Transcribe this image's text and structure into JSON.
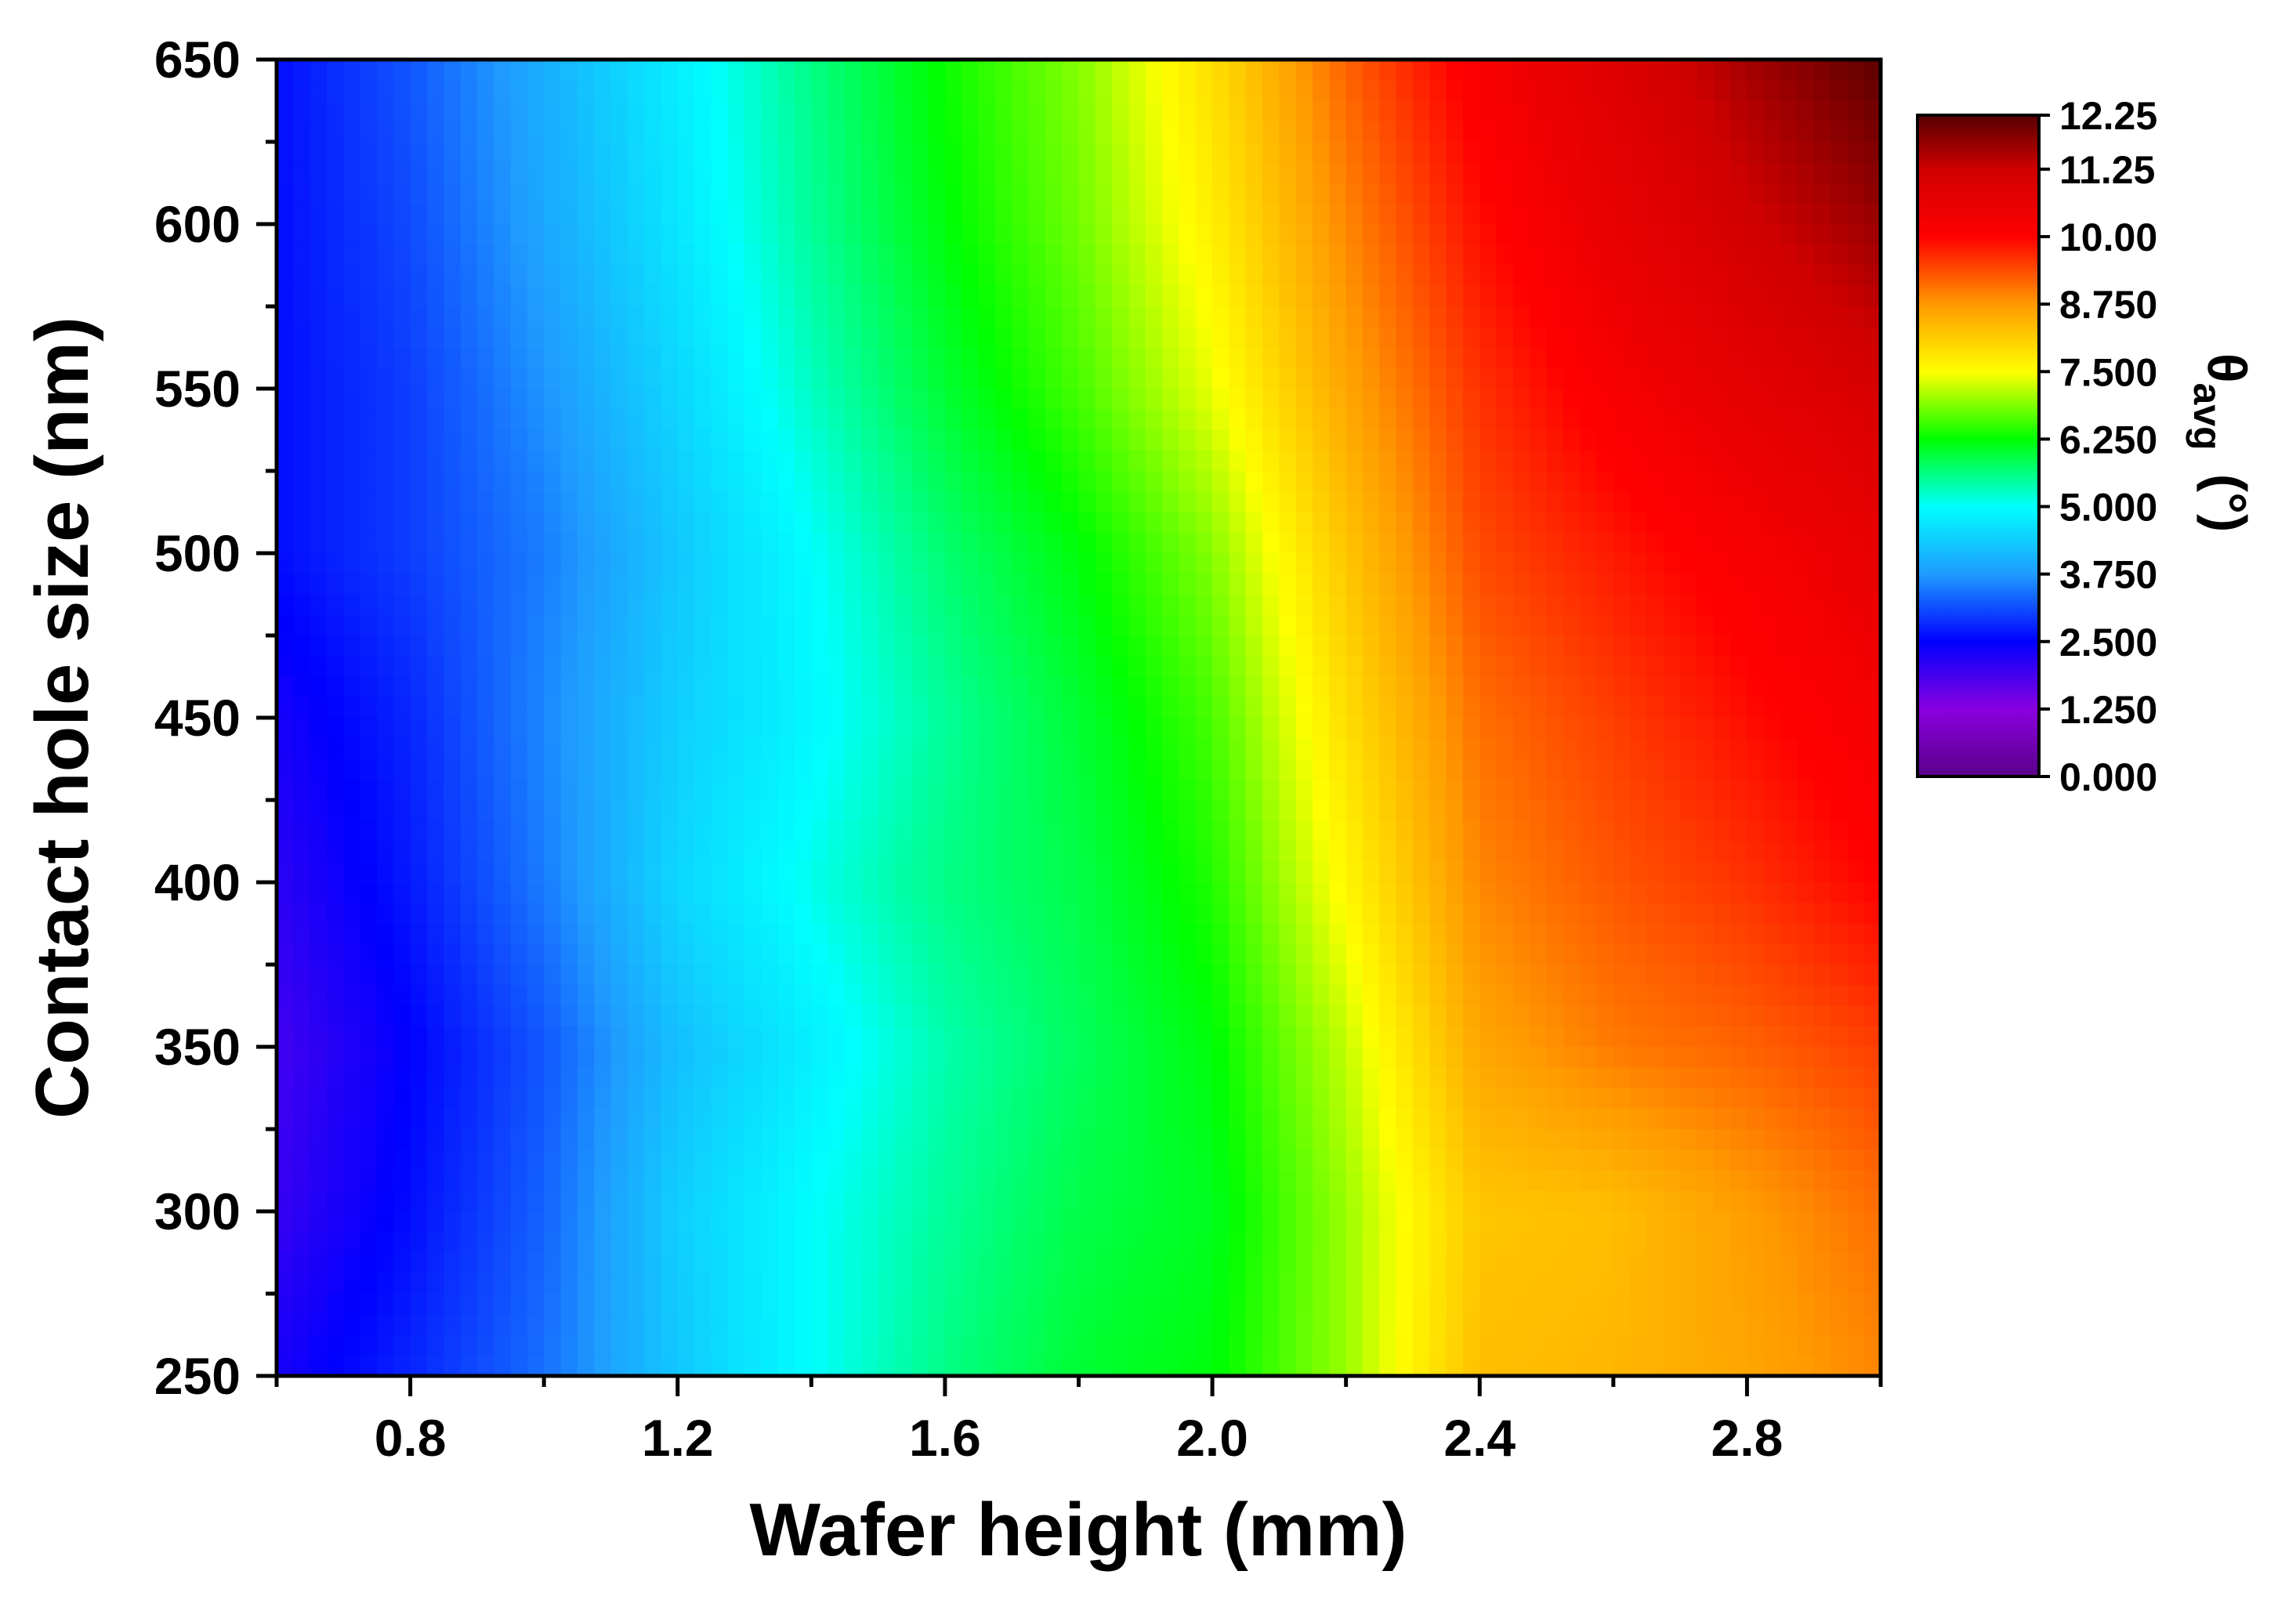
{
  "chart_data": {
    "type": "heatmap",
    "title": "",
    "xlabel": "Wafer height (mm)",
    "ylabel": "Contact hole size (nm)",
    "xlim": [
      0.6,
      3.0
    ],
    "ylim": [
      250,
      650
    ],
    "x_ticks": [
      0.8,
      1.2,
      1.6,
      2.0,
      2.4,
      2.8
    ],
    "x_tick_labels": [
      "0.8",
      "1.2",
      "1.6",
      "2.0",
      "2.4",
      "2.8"
    ],
    "y_ticks": [
      250,
      300,
      350,
      400,
      450,
      500,
      550,
      600,
      650
    ],
    "y_tick_labels": [
      "250",
      "300",
      "350",
      "400",
      "450",
      "500",
      "550",
      "600",
      "650"
    ],
    "colorbar": {
      "label_main": "θ",
      "label_sub": "avg",
      "label_unit": "(°)",
      "range": [
        0,
        12.25
      ],
      "ticks": [
        0,
        1.25,
        2.5,
        3.75,
        5,
        6.25,
        7.5,
        8.75,
        10,
        11.25,
        12.25
      ],
      "tick_labels": [
        "0.000",
        "1.250",
        "2.500",
        "3.750",
        "5.000",
        "6.250",
        "7.500",
        "8.750",
        "10.00",
        "11.25",
        "12.25"
      ],
      "colors": [
        "#5a0088",
        "#8a00e0",
        "#0000ff",
        "#1f9bff",
        "#00ffff",
        "#00ff00",
        "#ffff00",
        "#ff9900",
        "#ff0000",
        "#d00000",
        "#550000"
      ]
    },
    "x": [
      0.6,
      0.8,
      1.0,
      1.2,
      1.4,
      1.6,
      1.8,
      2.0,
      2.2,
      2.4,
      2.6,
      2.8,
      3.0
    ],
    "y": [
      250,
      300,
      350,
      400,
      450,
      500,
      550,
      600,
      650
    ],
    "z": [
      [
        2.3,
        2.8,
        3.4,
        4.3,
        5.0,
        5.6,
        6.0,
        6.2,
        7.0,
        8.3,
        8.4,
        8.6,
        8.9
      ],
      [
        2.0,
        2.6,
        3.3,
        4.4,
        5.0,
        5.5,
        5.9,
        6.1,
        7.0,
        8.2,
        8.3,
        8.7,
        9.1
      ],
      [
        1.9,
        2.5,
        3.2,
        4.2,
        4.8,
        5.4,
        5.8,
        6.2,
        7.2,
        8.6,
        9.0,
        9.2,
        9.5
      ],
      [
        2.1,
        2.7,
        3.5,
        4.5,
        5.1,
        5.6,
        5.9,
        6.4,
        7.6,
        8.9,
        9.3,
        9.6,
        10.0
      ],
      [
        2.3,
        2.8,
        3.6,
        4.4,
        4.9,
        5.5,
        6.0,
        6.6,
        7.9,
        9.1,
        9.5,
        9.9,
        10.3
      ],
      [
        2.6,
        3.0,
        3.5,
        4.3,
        5.0,
        5.7,
        6.2,
        6.9,
        8.2,
        9.4,
        9.8,
        10.2,
        10.6
      ],
      [
        2.6,
        3.0,
        3.7,
        4.5,
        5.3,
        6.0,
        6.6,
        7.4,
        8.6,
        9.6,
        10.2,
        10.7,
        11.1
      ],
      [
        2.6,
        3.1,
        3.9,
        4.7,
        5.5,
        6.2,
        6.8,
        7.7,
        8.9,
        9.9,
        10.6,
        11.2,
        11.7
      ],
      [
        2.6,
        3.2,
        4.0,
        4.8,
        5.6,
        6.3,
        6.9,
        7.9,
        9.2,
        10.2,
        10.9,
        11.6,
        12.2
      ]
    ]
  }
}
